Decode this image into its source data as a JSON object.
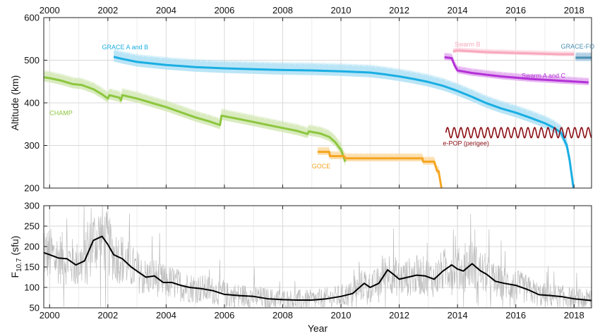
{
  "chart_data": [
    {
      "type": "line",
      "title": "",
      "xlabel": "",
      "ylabel": "Altitude (km)",
      "xlim": [
        1999.8,
        2018.6
      ],
      "ylim": [
        200,
        600
      ],
      "grid": true,
      "x_ticks": [
        2000,
        2002,
        2004,
        2006,
        2008,
        2010,
        2012,
        2014,
        2016,
        2018
      ],
      "x_tick_labels_top": [
        "2000",
        "2002",
        "2004",
        "2006",
        "2008",
        "2010",
        "2012",
        "2014",
        "2016",
        "2018"
      ],
      "y_ticks": [
        200,
        300,
        400,
        500,
        600
      ],
      "y_tick_labels": [
        "200",
        "300",
        "400",
        "500",
        "600"
      ],
      "series": [
        {
          "name": "CHAMP",
          "color": "#8dc63f",
          "band_color": "#d2e8b4",
          "band_halfwidth_km": 18,
          "label_at": [
            2000.0,
            371
          ],
          "x": [
            1999.8,
            2000.0,
            2000.4,
            2000.8,
            2001.1,
            2001.5,
            2001.8,
            2002.0,
            2002.05,
            2002.4,
            2002.45,
            2002.5,
            2003.0,
            2003.5,
            2004.0,
            2004.5,
            2005.0,
            2005.5,
            2005.85,
            2005.9,
            2006.5,
            2007.0,
            2007.5,
            2008.0,
            2008.5,
            2008.85,
            2008.9,
            2009.3,
            2009.6,
            2009.8,
            2010.0,
            2010.15
          ],
          "y": [
            460,
            458,
            452,
            444,
            442,
            432,
            420,
            410,
            418,
            412,
            406,
            418,
            410,
            400,
            390,
            378,
            366,
            356,
            348,
            370,
            362,
            355,
            348,
            341,
            334,
            327,
            333,
            328,
            320,
            308,
            290,
            262
          ]
        },
        {
          "name": "GRACE A and B",
          "color": "#1aaee3",
          "band_color": "#aee1f5",
          "band_halfwidth_km": 20,
          "label_at": [
            2001.8,
            526
          ],
          "x": [
            2002.2,
            2002.5,
            2003.0,
            2004.0,
            2005.0,
            2006.0,
            2007.0,
            2008.0,
            2009.0,
            2010.0,
            2011.0,
            2011.5,
            2012.0,
            2012.5,
            2013.0,
            2013.5,
            2014.0,
            2014.5,
            2015.0,
            2015.5,
            2016.0,
            2016.5,
            2017.0,
            2017.3,
            2017.55,
            2017.75,
            2017.85,
            2017.92,
            2017.98
          ],
          "y": [
            508,
            503,
            496,
            489,
            484,
            481,
            479,
            477,
            476,
            474,
            471,
            467,
            462,
            456,
            449,
            440,
            428,
            414,
            399,
            387,
            377,
            365,
            352,
            342,
            330,
            300,
            265,
            230,
            200
          ]
        },
        {
          "name": "GRACE-FO",
          "color": "#4b8fb3",
          "band_color": "#a6c8de",
          "band_halfwidth_km": 14,
          "label_at": [
            2017.55,
            527
          ],
          "x": [
            2018.05,
            2018.6
          ],
          "y": [
            506,
            506
          ]
        },
        {
          "name": "Swarm B",
          "color": "#f8a9bd",
          "band_color": "#fbd4de",
          "band_halfwidth_km": 8,
          "label_at": [
            2013.9,
            532
          ],
          "x": [
            2013.85,
            2014.0,
            2014.5,
            2015.0,
            2015.5,
            2016.0,
            2016.5,
            2017.0,
            2017.5,
            2018.0
          ],
          "y": [
            521,
            523,
            521,
            519,
            518,
            517,
            516,
            515,
            514,
            514
          ]
        },
        {
          "name": "Swarm A and C",
          "color": "#b332d6",
          "band_color": "#e2a8ef",
          "band_halfwidth_km": 12,
          "label_at": [
            2016.2,
            459
          ],
          "x": [
            2013.55,
            2013.8,
            2013.9,
            2014.0,
            2014.5,
            2015.0,
            2015.5,
            2016.0,
            2016.5,
            2017.0,
            2017.5,
            2018.0,
            2018.5
          ],
          "y": [
            507,
            505,
            488,
            476,
            470,
            466,
            462,
            459,
            456,
            454,
            452,
            450,
            448
          ]
        },
        {
          "name": "e-POP (perigee)",
          "color": "#8b0d14",
          "label_at": [
            2013.5,
            300
          ],
          "oscillation": {
            "x_start": 2013.6,
            "x_end": 2018.6,
            "mean_km": 330,
            "amplitude_km": 12,
            "period_years": 0.23
          }
        },
        {
          "name": "GOCE",
          "color": "#f5a623",
          "band_color": "#fcd9a0",
          "band_halfwidth_km": 13,
          "label_at": [
            2009.0,
            246
          ],
          "x": [
            2009.2,
            2009.6,
            2009.62,
            2009.9,
            2010.1,
            2010.15,
            2011.5,
            2012.0,
            2012.5,
            2012.8,
            2012.82,
            2013.2,
            2013.3,
            2013.35,
            2013.45
          ],
          "y": [
            285,
            285,
            275,
            275,
            275,
            270,
            270,
            270,
            270,
            270,
            262,
            262,
            240,
            240,
            200
          ]
        }
      ]
    },
    {
      "type": "line",
      "title": "",
      "xlabel": "Year",
      "ylabel_main": "F",
      "ylabel_sub": "10.7",
      "ylabel_unit": " (sfu)",
      "xlim": [
        1999.8,
        2018.6
      ],
      "ylim": [
        50,
        300
      ],
      "grid": true,
      "x_ticks": [
        2000,
        2002,
        2004,
        2006,
        2008,
        2010,
        2012,
        2014,
        2016,
        2018
      ],
      "x_tick_labels": [
        "2000",
        "2002",
        "2004",
        "2006",
        "2008",
        "2010",
        "2012",
        "2014",
        "2016",
        "2018"
      ],
      "y_ticks": [
        50,
        100,
        150,
        200,
        250,
        300
      ],
      "y_tick_labels": [
        "50",
        "100",
        "150",
        "200",
        "250",
        "300"
      ],
      "series": [
        {
          "name": "",
          "color": "#000000",
          "x": [
            1999.8,
            2000.0,
            2000.3,
            2000.6,
            2000.9,
            2001.2,
            2001.5,
            2001.8,
            2002.0,
            2002.2,
            2002.5,
            2002.8,
            2003.0,
            2003.3,
            2003.6,
            2003.9,
            2004.2,
            2004.5,
            2004.8,
            2005.2,
            2005.6,
            2006.0,
            2006.5,
            2007.0,
            2007.5,
            2008.0,
            2008.5,
            2009.0,
            2009.5,
            2010.0,
            2010.4,
            2010.8,
            2011.0,
            2011.3,
            2011.6,
            2011.8,
            2012.0,
            2012.3,
            2012.6,
            2012.9,
            2013.2,
            2013.5,
            2013.8,
            2014.0,
            2014.2,
            2014.5,
            2014.8,
            2015.0,
            2015.3,
            2015.6,
            2016.0,
            2016.4,
            2016.8,
            2017.2,
            2017.6,
            2018.0,
            2018.3,
            2018.6
          ],
          "y": [
            185,
            180,
            172,
            170,
            155,
            165,
            215,
            225,
            205,
            180,
            170,
            150,
            140,
            125,
            128,
            112,
            112,
            105,
            100,
            97,
            92,
            83,
            80,
            78,
            72,
            70,
            69,
            69,
            72,
            78,
            85,
            110,
            100,
            110,
            143,
            132,
            120,
            125,
            130,
            128,
            120,
            140,
            155,
            145,
            140,
            158,
            140,
            132,
            115,
            110,
            105,
            95,
            82,
            80,
            77,
            72,
            70,
            68
          ]
        }
      ],
      "daily_variability": {
        "color": "#bdbdbd",
        "scale": 0.38
      }
    }
  ]
}
